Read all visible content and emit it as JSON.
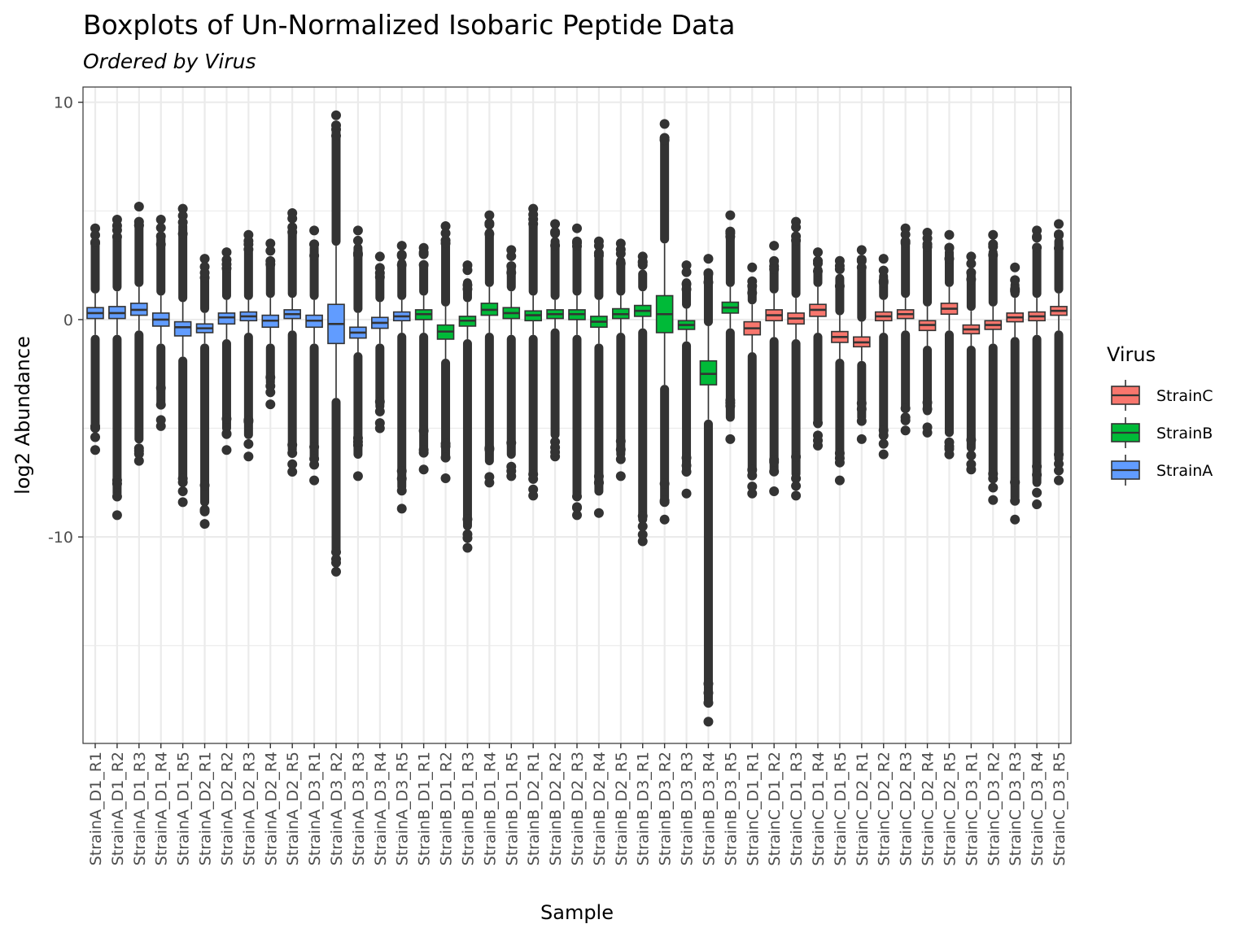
{
  "chart_data": {
    "type": "box",
    "title": "Boxplots of Un-Normalized Isobaric Peptide Data",
    "subtitle": "Ordered by  Virus",
    "xlabel": "Sample",
    "ylabel": "log2 Abundance",
    "ylim": [
      -19.5,
      10.7
    ],
    "yticks": [
      10,
      0,
      -10
    ],
    "ytick_labels": [
      "10",
      "0",
      "-10"
    ],
    "grid": true,
    "legend": {
      "title": "Virus",
      "position": "right",
      "entries": [
        {
          "name": "StrainC",
          "color": "#F8766D"
        },
        {
          "name": "StrainB",
          "color": "#00BA38"
        },
        {
          "name": "StrainA",
          "color": "#619CFF"
        }
      ]
    },
    "samples": [
      {
        "name": "StrainA_D1_R1",
        "group": "StrainA",
        "q1": 0.05,
        "median": 0.3,
        "q3": 0.55,
        "wlo": -0.7,
        "whi": 1.2,
        "min": -6.0,
        "max": 4.2
      },
      {
        "name": "StrainA_D1_R2",
        "group": "StrainA",
        "q1": 0.05,
        "median": 0.3,
        "q3": 0.6,
        "wlo": -0.7,
        "whi": 1.3,
        "min": -9.0,
        "max": 4.6
      },
      {
        "name": "StrainA_D1_R3",
        "group": "StrainA",
        "q1": 0.2,
        "median": 0.45,
        "q3": 0.75,
        "wlo": -0.5,
        "whi": 1.5,
        "min": -6.5,
        "max": 5.2
      },
      {
        "name": "StrainA_D1_R4",
        "group": "StrainA",
        "q1": -0.3,
        "median": 0.0,
        "q3": 0.3,
        "wlo": -1.1,
        "whi": 1.1,
        "min": -4.9,
        "max": 4.6
      },
      {
        "name": "StrainA_D1_R5",
        "group": "StrainA",
        "q1": -0.75,
        "median": -0.35,
        "q3": -0.1,
        "wlo": -1.7,
        "whi": 0.8,
        "min": -8.4,
        "max": 5.1
      },
      {
        "name": "StrainA_D2_R1",
        "group": "StrainA",
        "q1": -0.6,
        "median": -0.4,
        "q3": -0.2,
        "wlo": -1.1,
        "whi": 0.3,
        "min": -9.4,
        "max": 2.8
      },
      {
        "name": "StrainA_D2_R2",
        "group": "StrainA",
        "q1": -0.2,
        "median": 0.1,
        "q3": 0.3,
        "wlo": -0.9,
        "whi": 0.9,
        "min": -6.0,
        "max": 3.1
      },
      {
        "name": "StrainA_D2_R3",
        "group": "StrainA",
        "q1": -0.05,
        "median": 0.15,
        "q3": 0.35,
        "wlo": -0.6,
        "whi": 0.9,
        "min": -6.3,
        "max": 3.9
      },
      {
        "name": "StrainA_D2_R4",
        "group": "StrainA",
        "q1": -0.35,
        "median": -0.05,
        "q3": 0.2,
        "wlo": -1.1,
        "whi": 1.0,
        "min": -3.9,
        "max": 3.5
      },
      {
        "name": "StrainA_D2_R5",
        "group": "StrainA",
        "q1": 0.05,
        "median": 0.25,
        "q3": 0.45,
        "wlo": -0.5,
        "whi": 1.0,
        "min": -7.0,
        "max": 4.9
      },
      {
        "name": "StrainA_D3_R1",
        "group": "StrainA",
        "q1": -0.35,
        "median": -0.05,
        "q3": 0.2,
        "wlo": -1.1,
        "whi": 0.9,
        "min": -7.4,
        "max": 4.1
      },
      {
        "name": "StrainA_D3_R2",
        "group": "StrainA",
        "q1": -1.1,
        "median": -0.2,
        "q3": 0.7,
        "wlo": -3.6,
        "whi": 3.4,
        "min": -11.6,
        "max": 9.4
      },
      {
        "name": "StrainA_D3_R3",
        "group": "StrainA",
        "q1": -0.85,
        "median": -0.6,
        "q3": -0.35,
        "wlo": -1.5,
        "whi": 0.3,
        "min": -7.2,
        "max": 4.1
      },
      {
        "name": "StrainA_D3_R4",
        "group": "StrainA",
        "q1": -0.4,
        "median": -0.15,
        "q3": 0.1,
        "wlo": -1.1,
        "whi": 0.8,
        "min": -5.0,
        "max": 2.9
      },
      {
        "name": "StrainA_D3_R5",
        "group": "StrainA",
        "q1": -0.05,
        "median": 0.15,
        "q3": 0.35,
        "wlo": -0.6,
        "whi": 0.9,
        "min": -8.7,
        "max": 3.4
      },
      {
        "name": "StrainB_D1_R1",
        "group": "StrainB",
        "q1": 0.0,
        "median": 0.25,
        "q3": 0.45,
        "wlo": -0.6,
        "whi": 1.1,
        "min": -6.9,
        "max": 3.3
      },
      {
        "name": "StrainB_D1_R2",
        "group": "StrainB",
        "q1": -0.9,
        "median": -0.55,
        "q3": -0.25,
        "wlo": -1.8,
        "whi": 0.6,
        "min": -7.3,
        "max": 4.3
      },
      {
        "name": "StrainB_D1_R3",
        "group": "StrainB",
        "q1": -0.3,
        "median": -0.05,
        "q3": 0.15,
        "wlo": -0.9,
        "whi": 0.8,
        "min": -10.5,
        "max": 2.5
      },
      {
        "name": "StrainB_D1_R4",
        "group": "StrainB",
        "q1": 0.2,
        "median": 0.45,
        "q3": 0.75,
        "wlo": -0.6,
        "whi": 1.5,
        "min": -7.5,
        "max": 4.8
      },
      {
        "name": "StrainB_D1_R5",
        "group": "StrainB",
        "q1": 0.05,
        "median": 0.3,
        "q3": 0.55,
        "wlo": -0.7,
        "whi": 1.3,
        "min": -7.2,
        "max": 3.2
      },
      {
        "name": "StrainB_D2_R1",
        "group": "StrainB",
        "q1": -0.05,
        "median": 0.2,
        "q3": 0.4,
        "wlo": -0.7,
        "whi": 1.1,
        "min": -8.1,
        "max": 5.1
      },
      {
        "name": "StrainB_D2_R2",
        "group": "StrainB",
        "q1": 0.05,
        "median": 0.25,
        "q3": 0.45,
        "wlo": -0.4,
        "whi": 0.9,
        "min": -6.3,
        "max": 4.4
      },
      {
        "name": "StrainB_D2_R3",
        "group": "StrainB",
        "q1": 0.0,
        "median": 0.25,
        "q3": 0.45,
        "wlo": -0.7,
        "whi": 1.1,
        "min": -9.0,
        "max": 4.2
      },
      {
        "name": "StrainB_D2_R4",
        "group": "StrainB",
        "q1": -0.35,
        "median": -0.1,
        "q3": 0.15,
        "wlo": -1.1,
        "whi": 0.9,
        "min": -8.9,
        "max": 3.6
      },
      {
        "name": "StrainB_D2_R5",
        "group": "StrainB",
        "q1": 0.05,
        "median": 0.25,
        "q3": 0.5,
        "wlo": -0.6,
        "whi": 1.1,
        "min": -7.2,
        "max": 3.5
      },
      {
        "name": "StrainB_D3_R1",
        "group": "StrainB",
        "q1": 0.15,
        "median": 0.4,
        "q3": 0.65,
        "wlo": -0.4,
        "whi": 1.3,
        "min": -10.2,
        "max": 2.9
      },
      {
        "name": "StrainB_D3_R2",
        "group": "StrainB",
        "q1": -0.6,
        "median": 0.25,
        "q3": 1.1,
        "wlo": -3.0,
        "whi": 3.5,
        "min": -9.2,
        "max": 9.0
      },
      {
        "name": "StrainB_D3_R3",
        "group": "StrainB",
        "q1": -0.45,
        "median": -0.25,
        "q3": -0.05,
        "wlo": -1.0,
        "whi": 0.5,
        "min": -8.0,
        "max": 2.5
      },
      {
        "name": "StrainB_D3_R4",
        "group": "StrainB",
        "q1": -3.0,
        "median": -2.5,
        "q3": -1.9,
        "wlo": -4.6,
        "whi": -0.3,
        "min": -18.5,
        "max": 2.8
      },
      {
        "name": "StrainB_D3_R5",
        "group": "StrainB",
        "q1": 0.3,
        "median": 0.55,
        "q3": 0.8,
        "wlo": -0.4,
        "whi": 1.5,
        "min": -5.5,
        "max": 4.8
      },
      {
        "name": "StrainC_D1_R1",
        "group": "StrainC",
        "q1": -0.7,
        "median": -0.4,
        "q3": -0.1,
        "wlo": -1.5,
        "whi": 0.7,
        "min": -8.0,
        "max": 2.4
      },
      {
        "name": "StrainC_D1_R2",
        "group": "StrainC",
        "q1": -0.05,
        "median": 0.2,
        "q3": 0.45,
        "wlo": -0.8,
        "whi": 1.2,
        "min": -7.9,
        "max": 3.4
      },
      {
        "name": "StrainC_D1_R3",
        "group": "StrainC",
        "q1": -0.2,
        "median": 0.05,
        "q3": 0.3,
        "wlo": -0.9,
        "whi": 1.0,
        "min": -8.1,
        "max": 4.5
      },
      {
        "name": "StrainC_D1_R4",
        "group": "StrainC",
        "q1": 0.15,
        "median": 0.45,
        "q3": 0.7,
        "wlo": -0.6,
        "whi": 1.5,
        "min": -5.8,
        "max": 3.1
      },
      {
        "name": "StrainC_D1_R5",
        "group": "StrainC",
        "q1": -1.05,
        "median": -0.8,
        "q3": -0.55,
        "wlo": -1.8,
        "whi": 0.2,
        "min": -7.4,
        "max": 2.7
      },
      {
        "name": "StrainC_D2_R1",
        "group": "StrainC",
        "q1": -1.25,
        "median": -1.05,
        "q3": -0.8,
        "wlo": -1.9,
        "whi": -0.1,
        "min": -5.5,
        "max": 3.2
      },
      {
        "name": "StrainC_D2_R2",
        "group": "StrainC",
        "q1": -0.05,
        "median": 0.15,
        "q3": 0.35,
        "wlo": -0.6,
        "whi": 0.9,
        "min": -6.2,
        "max": 2.8
      },
      {
        "name": "StrainC_D2_R3",
        "group": "StrainC",
        "q1": 0.05,
        "median": 0.25,
        "q3": 0.45,
        "wlo": -0.5,
        "whi": 1.0,
        "min": -5.1,
        "max": 4.2
      },
      {
        "name": "StrainC_D2_R4",
        "group": "StrainC",
        "q1": -0.5,
        "median": -0.25,
        "q3": -0.05,
        "wlo": -1.2,
        "whi": 0.6,
        "min": -5.2,
        "max": 4.0
      },
      {
        "name": "StrainC_D2_R5",
        "group": "StrainC",
        "q1": 0.25,
        "median": 0.5,
        "q3": 0.75,
        "wlo": -0.5,
        "whi": 1.5,
        "min": -6.2,
        "max": 3.9
      },
      {
        "name": "StrainC_D3_R1",
        "group": "StrainC",
        "q1": -0.65,
        "median": -0.45,
        "q3": -0.25,
        "wlo": -1.2,
        "whi": 0.4,
        "min": -6.9,
        "max": 2.9
      },
      {
        "name": "StrainC_D3_R2",
        "group": "StrainC",
        "q1": -0.45,
        "median": -0.25,
        "q3": -0.05,
        "wlo": -1.1,
        "whi": 0.6,
        "min": -8.3,
        "max": 3.9
      },
      {
        "name": "StrainC_D3_R3",
        "group": "StrainC",
        "q1": -0.1,
        "median": 0.1,
        "q3": 0.3,
        "wlo": -0.8,
        "whi": 1.0,
        "min": -9.2,
        "max": 2.4
      },
      {
        "name": "StrainC_D3_R4",
        "group": "StrainC",
        "q1": -0.05,
        "median": 0.15,
        "q3": 0.35,
        "wlo": -0.7,
        "whi": 1.0,
        "min": -8.5,
        "max": 4.1
      },
      {
        "name": "StrainC_D3_R5",
        "group": "StrainC",
        "q1": 0.2,
        "median": 0.4,
        "q3": 0.6,
        "wlo": -0.5,
        "whi": 1.2,
        "min": -7.4,
        "max": 4.4
      }
    ]
  }
}
